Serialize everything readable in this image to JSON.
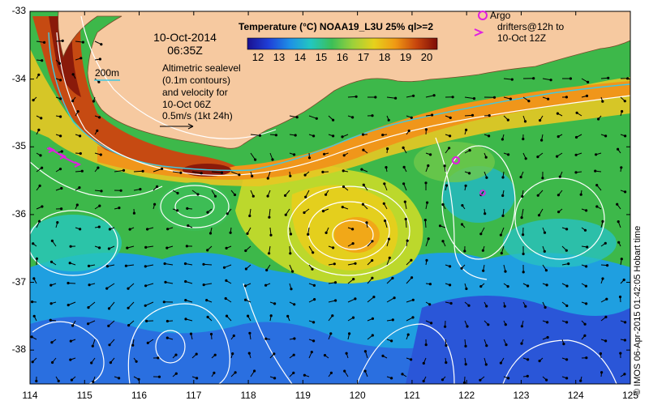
{
  "map": {
    "title_date": "10-Oct-2014",
    "title_time": "06:35Z",
    "colorbar": {
      "title": "Temperature (°C) NOAA19_L3U 25% ql>=2",
      "ticks": [
        "12",
        "13",
        "14",
        "15",
        "16",
        "17",
        "18",
        "19",
        "20"
      ],
      "range": [
        11.5,
        20.5
      ],
      "stops": [
        "#1a1090",
        "#1f3fd8",
        "#1e8fe6",
        "#22c7c0",
        "#3cbf57",
        "#9dd13a",
        "#e6d11c",
        "#f09a14",
        "#c8460d",
        "#7d0c08"
      ]
    },
    "contour_label": "200m",
    "sealevel_note": [
      "Altimetric sealevel",
      "(0.1m contours)",
      "and velocity for",
      "10-Oct 06Z"
    ],
    "velocity_scale": "0.5m/s (1kt 24h)",
    "argo_legend": [
      "Argo",
      "drifters@12h to",
      "10-Oct 12Z"
    ],
    "argo_symbol": "O",
    "drifter_symbol": ">",
    "credit": "© IMOS 06-Apr-2015 01:42:05 Hobart time",
    "x_ticks": [
      "114",
      "115",
      "116",
      "117",
      "118",
      "119",
      "120",
      "121",
      "122",
      "123",
      "124",
      "125"
    ],
    "y_ticks": [
      "-33",
      "-34",
      "-35",
      "-36",
      "-37",
      "-38"
    ],
    "extent": {
      "lon": [
        114,
        125
      ],
      "lat": [
        -38.5,
        -33
      ]
    },
    "colors": {
      "land": "#f6c9a0",
      "contour": "#ffffff",
      "isobath": "#40c8e0",
      "argo": "#e020e0",
      "arrow": "#000000",
      "frame": "#000000"
    }
  }
}
